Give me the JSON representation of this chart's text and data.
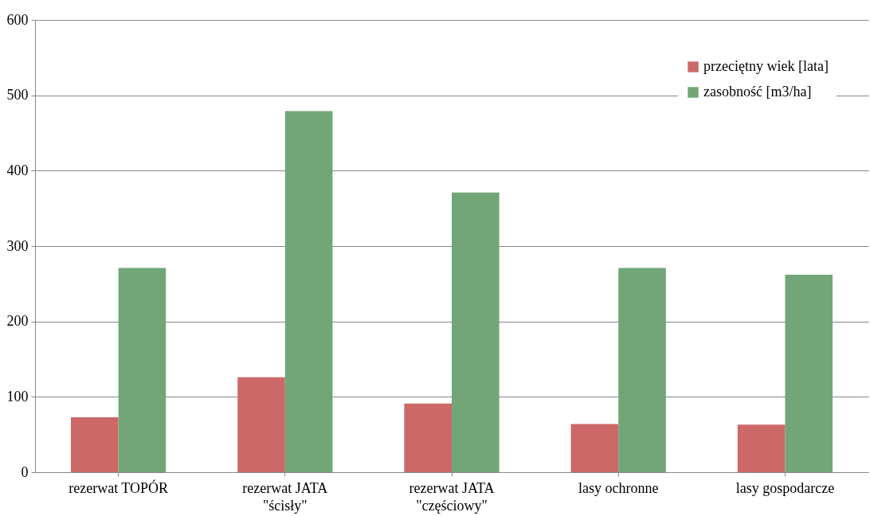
{
  "chart_data": {
    "type": "bar",
    "categories": [
      "rezerwat TOPÓR",
      "rezerwat JATA\n\"ścisły\"",
      "rezerwat JATA\n\"częściowy\"",
      "lasy ochronne",
      "lasy gospodarcze"
    ],
    "series": [
      {
        "name": "przeciętny wiek [lata]",
        "color": "#cd6868",
        "values": [
          73,
          126,
          91,
          64,
          63
        ]
      },
      {
        "name": "zasobność [m3/ha]",
        "color": "#72a678",
        "values": [
          271,
          479,
          371,
          271,
          262
        ]
      }
    ],
    "ylim": [
      0,
      600
    ],
    "yticks": [
      0,
      100,
      200,
      300,
      400,
      500,
      600
    ],
    "grid": "y",
    "legend": "top right"
  }
}
